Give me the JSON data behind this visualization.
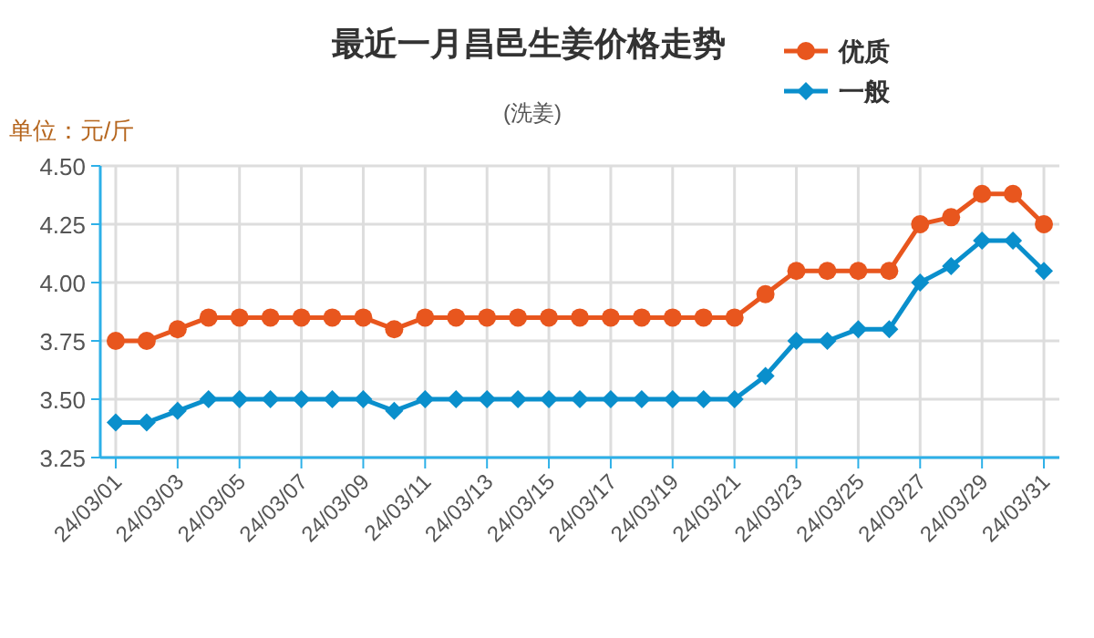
{
  "chart_data": {
    "type": "line",
    "title": "最近一月昌邑生姜价格走势",
    "subtitle": "(洗姜)",
    "ylabel": "单位：元/斤",
    "categories": [
      "24/03/01",
      null,
      "24/03/03",
      null,
      "24/03/05",
      null,
      "24/03/07",
      null,
      "24/03/09",
      null,
      "24/03/11",
      null,
      "24/03/13",
      null,
      "24/03/15",
      null,
      "24/03/17",
      null,
      "24/03/19",
      null,
      "24/03/21",
      null,
      "24/03/23",
      null,
      "24/03/25",
      null,
      "24/03/27",
      null,
      "24/03/29",
      null,
      "24/03/31"
    ],
    "series": [
      {
        "name": "优质",
        "color": "#e8561e",
        "marker": "circle",
        "values": [
          3.75,
          3.75,
          3.8,
          3.85,
          3.85,
          3.85,
          3.85,
          3.85,
          3.85,
          3.8,
          3.85,
          3.85,
          3.85,
          3.85,
          3.85,
          3.85,
          3.85,
          3.85,
          3.85,
          3.85,
          3.85,
          3.95,
          4.05,
          4.05,
          4.05,
          4.05,
          4.25,
          4.28,
          4.38,
          4.38,
          4.25
        ]
      },
      {
        "name": "一般",
        "color": "#0a8fcc",
        "marker": "diamond",
        "values": [
          3.4,
          3.4,
          3.45,
          3.5,
          3.5,
          3.5,
          3.5,
          3.5,
          3.5,
          3.45,
          3.5,
          3.5,
          3.5,
          3.5,
          3.5,
          3.5,
          3.5,
          3.5,
          3.5,
          3.5,
          3.5,
          3.6,
          3.75,
          3.75,
          3.8,
          3.8,
          4.0,
          4.07,
          4.18,
          4.18,
          4.05
        ]
      }
    ],
    "ylim": [
      3.25,
      4.5
    ],
    "yticks": [
      {
        "value": 3.25,
        "label": "3.25"
      },
      {
        "value": 3.5,
        "label": "3.50"
      },
      {
        "value": 3.75,
        "label": "3.75"
      },
      {
        "value": 4.0,
        "label": "4.00"
      },
      {
        "value": 4.25,
        "label": "4.25"
      },
      {
        "value": 4.5,
        "label": "4.50"
      }
    ],
    "grid": true,
    "legend": "top right",
    "line_style": "solid"
  }
}
